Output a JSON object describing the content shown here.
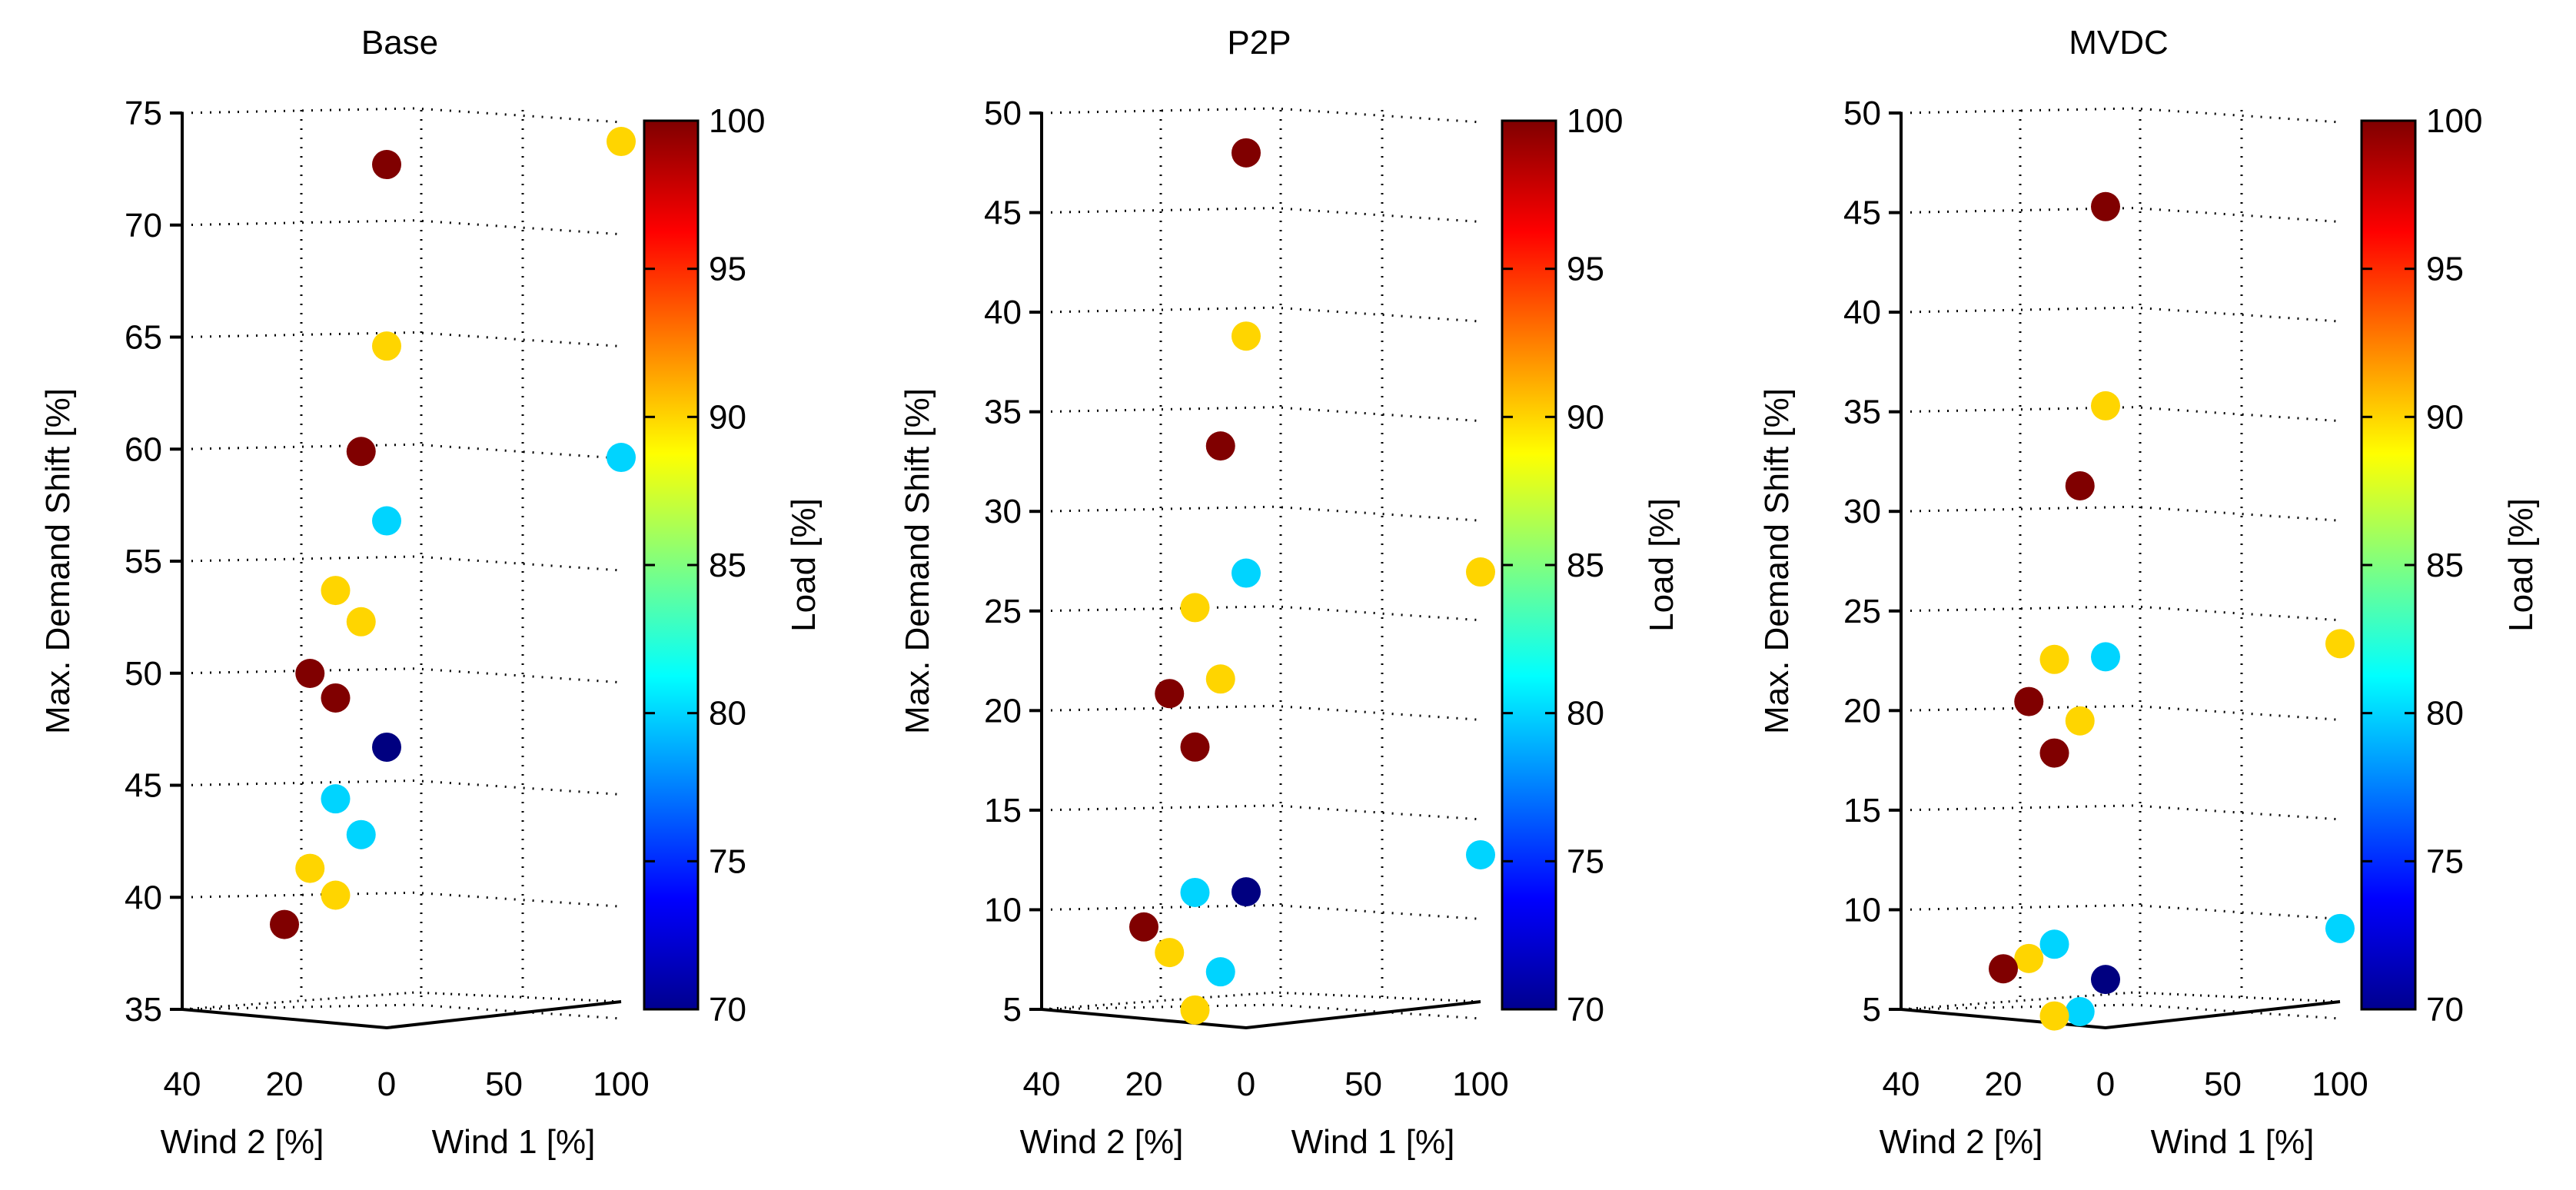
{
  "figure": {
    "colorbar_label": "Load [%]",
    "colorbar_ticks": [
      70,
      75,
      80,
      85,
      90,
      95,
      100
    ],
    "colormap": [
      "#00008f",
      "#0000ff",
      "#00ffff",
      "#ffff00",
      "#ff0000",
      "#800000"
    ]
  },
  "chart_data": [
    {
      "type": "scatter3d",
      "title": "Base",
      "zlabel": "Max. Demand Shift [%]",
      "xlabel": "Wind 2 [%]",
      "ylabel": "Wind 1 [%]",
      "zlim": [
        35,
        75
      ],
      "zticks": [
        35,
        40,
        45,
        50,
        55,
        60,
        65,
        70,
        75
      ],
      "wind2_ticks": [
        40,
        20,
        0
      ],
      "wind1_ticks": [
        50,
        100
      ],
      "clim": [
        70,
        100
      ],
      "points": [
        {
          "wind2": 0,
          "wind1": 0,
          "shift": 72.7,
          "load": 100
        },
        {
          "wind2": 0,
          "wind1": 100,
          "shift": 72.7,
          "load": 90
        },
        {
          "wind2": 0,
          "wind1": 0,
          "shift": 64.6,
          "load": 90
        },
        {
          "wind2": 5,
          "wind1": 0,
          "shift": 60.0,
          "load": 100
        },
        {
          "wind2": 0,
          "wind1": 100,
          "shift": 58.6,
          "load": 80
        },
        {
          "wind2": 0,
          "wind1": 0,
          "shift": 56.8,
          "load": 80
        },
        {
          "wind2": 10,
          "wind1": 0,
          "shift": 53.9,
          "load": 90
        },
        {
          "wind2": 5,
          "wind1": 0,
          "shift": 52.4,
          "load": 90
        },
        {
          "wind2": 15,
          "wind1": 0,
          "shift": 50.3,
          "load": 100
        },
        {
          "wind2": 10,
          "wind1": 0,
          "shift": 49.1,
          "load": 100
        },
        {
          "wind2": 0,
          "wind1": 0,
          "shift": 46.7,
          "load": 70
        },
        {
          "wind2": 10,
          "wind1": 0,
          "shift": 44.6,
          "load": 80
        },
        {
          "wind2": 5,
          "wind1": 0,
          "shift": 42.9,
          "load": 80
        },
        {
          "wind2": 15,
          "wind1": 0,
          "shift": 41.6,
          "load": 90
        },
        {
          "wind2": 10,
          "wind1": 0,
          "shift": 40.3,
          "load": 90
        },
        {
          "wind2": 20,
          "wind1": 0,
          "shift": 39.2,
          "load": 100
        }
      ]
    },
    {
      "type": "scatter3d",
      "title": "P2P",
      "zlabel": "Max. Demand Shift [%]",
      "xlabel": "Wind 2 [%]",
      "ylabel": "Wind 1 [%]",
      "zlim": [
        5,
        50
      ],
      "zticks": [
        5,
        10,
        15,
        20,
        25,
        30,
        35,
        40,
        45,
        50
      ],
      "wind2_ticks": [
        40,
        20,
        0
      ],
      "wind1_ticks": [
        50,
        100
      ],
      "clim": [
        70,
        100
      ],
      "points": [
        {
          "wind2": 0,
          "wind1": 0,
          "shift": 48.0,
          "load": 100
        },
        {
          "wind2": 0,
          "wind1": 0,
          "shift": 38.8,
          "load": 90
        },
        {
          "wind2": 5,
          "wind1": 0,
          "shift": 33.4,
          "load": 100
        },
        {
          "wind2": 0,
          "wind1": 0,
          "shift": 26.9,
          "load": 80
        },
        {
          "wind2": 0,
          "wind1": 100,
          "shift": 25.8,
          "load": 90
        },
        {
          "wind2": 10,
          "wind1": 0,
          "shift": 25.4,
          "load": 90
        },
        {
          "wind2": 5,
          "wind1": 0,
          "shift": 21.7,
          "load": 90
        },
        {
          "wind2": 15,
          "wind1": 0,
          "shift": 21.2,
          "load": 100
        },
        {
          "wind2": 10,
          "wind1": 0,
          "shift": 18.4,
          "load": 100
        },
        {
          "wind2": 0,
          "wind1": 100,
          "shift": 11.6,
          "load": 80
        },
        {
          "wind2": 10,
          "wind1": 0,
          "shift": 11.1,
          "load": 80
        },
        {
          "wind2": 0,
          "wind1": 0,
          "shift": 10.9,
          "load": 70
        },
        {
          "wind2": 20,
          "wind1": 0,
          "shift": 9.6,
          "load": 100
        },
        {
          "wind2": 15,
          "wind1": 0,
          "shift": 8.2,
          "load": 90
        },
        {
          "wind2": 5,
          "wind1": 0,
          "shift": 7.0,
          "load": 80
        },
        {
          "wind2": 10,
          "wind1": 0,
          "shift": 5.2,
          "load": 90
        }
      ]
    },
    {
      "type": "scatter3d",
      "title": "MVDC",
      "zlabel": "Max. Demand Shift [%]",
      "xlabel": "Wind 2 [%]",
      "ylabel": "Wind 1 [%]",
      "zlim": [
        5,
        50
      ],
      "zticks": [
        5,
        10,
        15,
        20,
        25,
        30,
        35,
        40,
        45,
        50
      ],
      "wind2_ticks": [
        40,
        20,
        0
      ],
      "wind1_ticks": [
        50,
        100
      ],
      "clim": [
        70,
        100
      ],
      "points": [
        {
          "wind2": 0,
          "wind1": 0,
          "shift": 45.3,
          "load": 100
        },
        {
          "wind2": 0,
          "wind1": 0,
          "shift": 35.3,
          "load": 90
        },
        {
          "wind2": 5,
          "wind1": 0,
          "shift": 31.4,
          "load": 100
        },
        {
          "wind2": 10,
          "wind1": 0,
          "shift": 22.8,
          "load": 90
        },
        {
          "wind2": 0,
          "wind1": 0,
          "shift": 22.7,
          "load": 80
        },
        {
          "wind2": 0,
          "wind1": 100,
          "shift": 22.2,
          "load": 90
        },
        {
          "wind2": 15,
          "wind1": 0,
          "shift": 20.8,
          "load": 100
        },
        {
          "wind2": 5,
          "wind1": 0,
          "shift": 19.6,
          "load": 90
        },
        {
          "wind2": 10,
          "wind1": 0,
          "shift": 18.1,
          "load": 100
        },
        {
          "wind2": 10,
          "wind1": 0,
          "shift": 8.5,
          "load": 80
        },
        {
          "wind2": 15,
          "wind1": 0,
          "shift": 7.9,
          "load": 90
        },
        {
          "wind2": 0,
          "wind1": 100,
          "shift": 7.9,
          "load": 80
        },
        {
          "wind2": 20,
          "wind1": 0,
          "shift": 7.5,
          "load": 100
        },
        {
          "wind2": 0,
          "wind1": 0,
          "shift": 6.5,
          "load": 70
        },
        {
          "wind2": 5,
          "wind1": 0,
          "shift": 5.0,
          "load": 80
        },
        {
          "wind2": 10,
          "wind1": 0,
          "shift": 4.9,
          "load": 90
        }
      ]
    }
  ]
}
